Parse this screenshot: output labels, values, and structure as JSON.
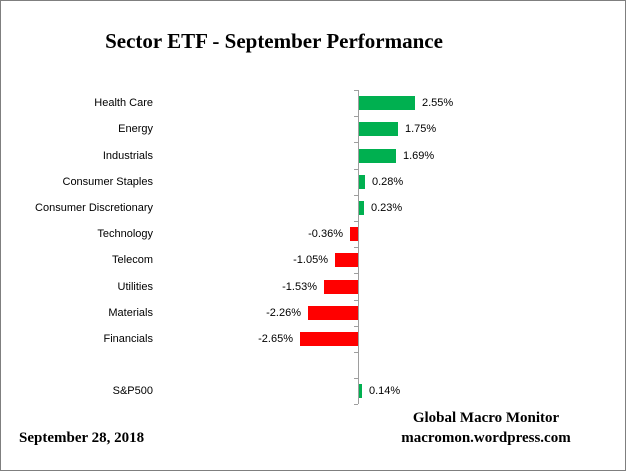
{
  "title": "Sector ETF - September Performance",
  "footer": {
    "date": "September 28,  2018",
    "source_line1": "Global Macro Monitor",
    "source_line2": "macromon.wordpress.com"
  },
  "colors": {
    "positive_bar": "#00B050",
    "negative_bar": "#FF0000",
    "axis": "#9E9E9E",
    "text": "#000000"
  },
  "chart_data": {
    "type": "bar",
    "orientation": "horizontal",
    "title": "Sector ETF - September Performance",
    "categories": [
      "Health Care",
      "Energy",
      "Industrials",
      "Consumer Staples",
      "Consumer Discretionary",
      "Technology",
      "Telecom",
      "Utilities",
      "Materials",
      "Financials",
      "",
      "S&P500"
    ],
    "values": [
      2.55,
      1.75,
      1.69,
      0.28,
      0.23,
      -0.36,
      -1.05,
      -1.53,
      -2.26,
      -2.65,
      null,
      0.14
    ],
    "labels": [
      "2.55%",
      "1.75%",
      "1.69%",
      "0.28%",
      "0.23%",
      "-0.36%",
      "-1.05%",
      "-1.53%",
      "-2.26%",
      "-2.65%",
      "",
      "0.14%"
    ],
    "unit": "%",
    "xlabel": "",
    "ylabel": "",
    "xlim": [
      -3,
      3
    ],
    "gridlines": false,
    "legend": "none",
    "value_axis_visible": false,
    "data_labels": true
  }
}
